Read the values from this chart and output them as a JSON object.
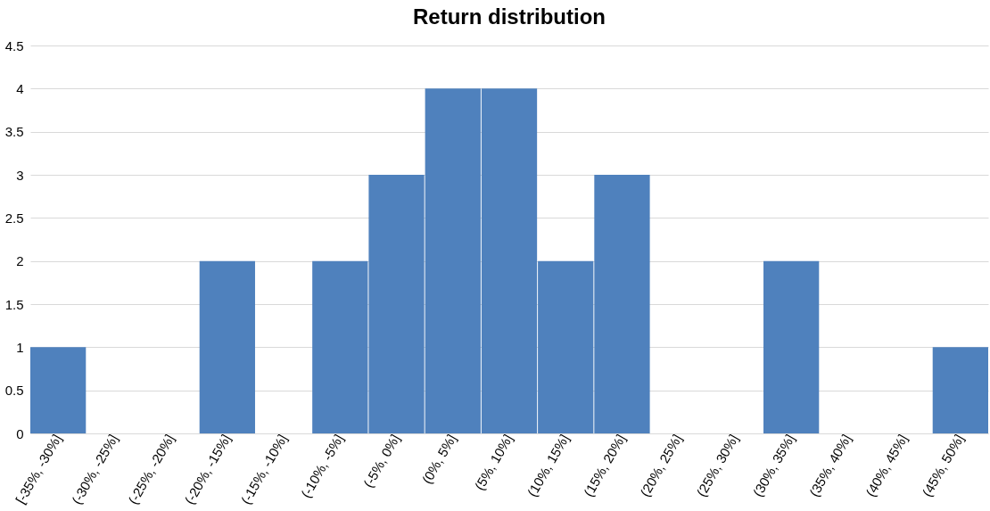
{
  "chart_data": {
    "type": "bar",
    "title": "Return distribution",
    "categories": [
      "[-35%, -30%]",
      "(-30%, -25%]",
      "(-25%, -20%]",
      "(-20%, -15%]",
      "(-15%, -10%]",
      "(-10%, -5%]",
      "(-5%, 0%]",
      "(0%, 5%]",
      "(5%, 10%]",
      "(10%, 15%]",
      "(15%, 20%]",
      "(20%, 25%]",
      "(25%, 30%]",
      "(30%, 35%]",
      "(35%, 40%]",
      "(40%, 45%]",
      "(45%, 50%]"
    ],
    "values": [
      1,
      0,
      0,
      2,
      0,
      2,
      3,
      4,
      4,
      2,
      3,
      0,
      0,
      2,
      0,
      0,
      1
    ],
    "color": "#4f81bd",
    "ylim": [
      0,
      4.5
    ],
    "yticks": [
      0,
      0.5,
      1,
      1.5,
      2,
      2.5,
      3,
      3.5,
      4,
      4.5
    ],
    "grid": "y"
  }
}
